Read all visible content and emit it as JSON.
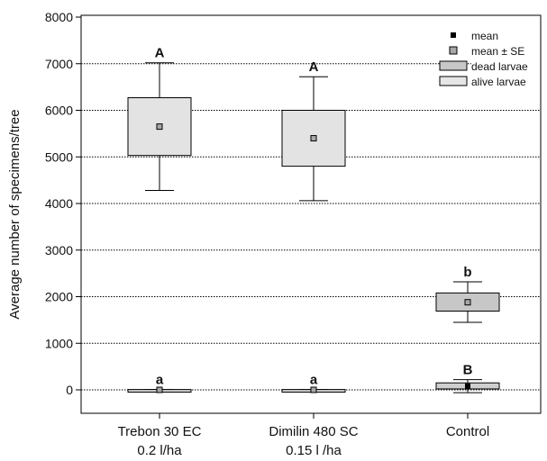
{
  "chart_data": {
    "type": "box",
    "ylabel": "Average number of specimens/tree",
    "ylim": [
      -500,
      8000
    ],
    "yticks": [
      0,
      1000,
      2000,
      3000,
      4000,
      5000,
      6000,
      7000,
      8000
    ],
    "grid": "horizontal dotted",
    "legend_position": "top-right",
    "categories": [
      {
        "line1": "Trebon 30 EC",
        "line2": "0.2 l/ha"
      },
      {
        "line1": "Dimilin 480 SC",
        "line2": "0.15 l /ha"
      },
      {
        "line1": "Control",
        "line2": ""
      }
    ],
    "legend": [
      {
        "label": "mean",
        "marker": "mean"
      },
      {
        "label": "mean ± SE",
        "marker": "mean-se"
      },
      {
        "label": "dead larvae",
        "marker": "dead"
      },
      {
        "label": "alive larvae",
        "marker": "alive"
      }
    ],
    "series": [
      {
        "name": "dead larvae",
        "color": "#e3e3e3",
        "boxes": [
          {
            "category": 0,
            "mean": 5650,
            "box_low": 5030,
            "box_high": 6270,
            "whisker_low": 4280,
            "whisker_high": 7020,
            "letter": "A"
          },
          {
            "category": 1,
            "mean": 5400,
            "box_low": 4800,
            "box_high": 6000,
            "whisker_low": 4060,
            "whisker_high": 6720,
            "letter": "A"
          },
          {
            "category": 2,
            "mean": 1880,
            "box_low": 1690,
            "box_high": 2080,
            "whisker_low": 1450,
            "whisker_high": 2320,
            "letter": "b"
          }
        ]
      },
      {
        "name": "alive larvae",
        "color": "#cfcfcf",
        "boxes": [
          {
            "category": 0,
            "mean": 0,
            "box_low": -8,
            "box_high": 8,
            "whisker_low": -8,
            "whisker_high": 8,
            "letter": "a"
          },
          {
            "category": 1,
            "mean": 0,
            "box_low": -8,
            "box_high": 8,
            "whisker_low": -8,
            "whisker_high": 8,
            "letter": "a"
          },
          {
            "category": 2,
            "mean": 80,
            "box_low": 20,
            "box_high": 150,
            "whisker_low": -60,
            "whisker_high": 220,
            "letter": "B"
          }
        ]
      }
    ]
  }
}
